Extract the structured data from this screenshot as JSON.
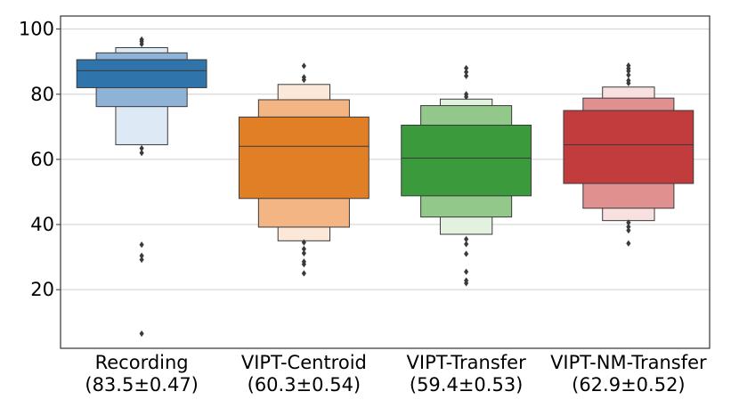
{
  "chart_data": {
    "type": "boxen",
    "title": "",
    "xlabel": "",
    "ylabel": "",
    "ylim": [
      2,
      104
    ],
    "yticks": [
      20,
      40,
      60,
      80,
      100
    ],
    "grid": "horizontal",
    "categories": [
      {
        "name": "Recording",
        "stat": "(83.5±0.47)",
        "color": "#1f77b4",
        "median": 87.2,
        "boxes": [
          {
            "lo": 82.0,
            "hi": 90.6,
            "shade": "#2f74ab"
          },
          {
            "lo": 76.2,
            "hi": 92.7,
            "shade": "#8fb3d6"
          },
          {
            "lo": 64.5,
            "hi": 94.3,
            "shade": "#dde9f4"
          }
        ],
        "outliers": [
          96.8,
          96.2,
          95.4,
          63.4,
          62.0,
          33.8,
          30.4,
          29.2,
          6.5
        ]
      },
      {
        "name": "VIPT-Centroid",
        "stat": "(60.3±0.54)",
        "color": "#ff7f0e",
        "median": 64.0,
        "boxes": [
          {
            "lo": 48.0,
            "hi": 73.0,
            "shade": "#e17f27"
          },
          {
            "lo": 39.2,
            "hi": 78.3,
            "shade": "#f2b583"
          },
          {
            "lo": 35.0,
            "hi": 83.0,
            "shade": "#fbe8d9"
          }
        ],
        "outliers": [
          88.7,
          85.2,
          84.4,
          34.5,
          32.5,
          31.2,
          28.6,
          27.8,
          25.0
        ]
      },
      {
        "name": "VIPT-Transfer",
        "stat": "(59.4±0.53)",
        "color": "#2ca02c",
        "median": 60.4,
        "boxes": [
          {
            "lo": 48.8,
            "hi": 70.5,
            "shade": "#3b9a3b"
          },
          {
            "lo": 42.3,
            "hi": 76.5,
            "shade": "#92c98a"
          },
          {
            "lo": 37.0,
            "hi": 78.5,
            "shade": "#e3f1df"
          }
        ],
        "outliers": [
          88.0,
          86.8,
          85.6,
          80.0,
          79.2,
          35.5,
          34.0,
          31.0,
          25.5,
          22.8,
          22.0
        ]
      },
      {
        "name": "VIPT-NM-Transfer",
        "stat": "(62.9±0.52)",
        "color": "#d62728",
        "median": 64.5,
        "boxes": [
          {
            "lo": 52.6,
            "hi": 75.0,
            "shade": "#c33c3d"
          },
          {
            "lo": 45.0,
            "hi": 78.8,
            "shade": "#e0908f"
          },
          {
            "lo": 41.2,
            "hi": 82.2,
            "shade": "#f7e0df"
          }
        ],
        "outliers": [
          88.8,
          87.9,
          87.1,
          85.9,
          84.2,
          83.4,
          40.6,
          39.3,
          38.2,
          34.2
        ]
      }
    ]
  }
}
